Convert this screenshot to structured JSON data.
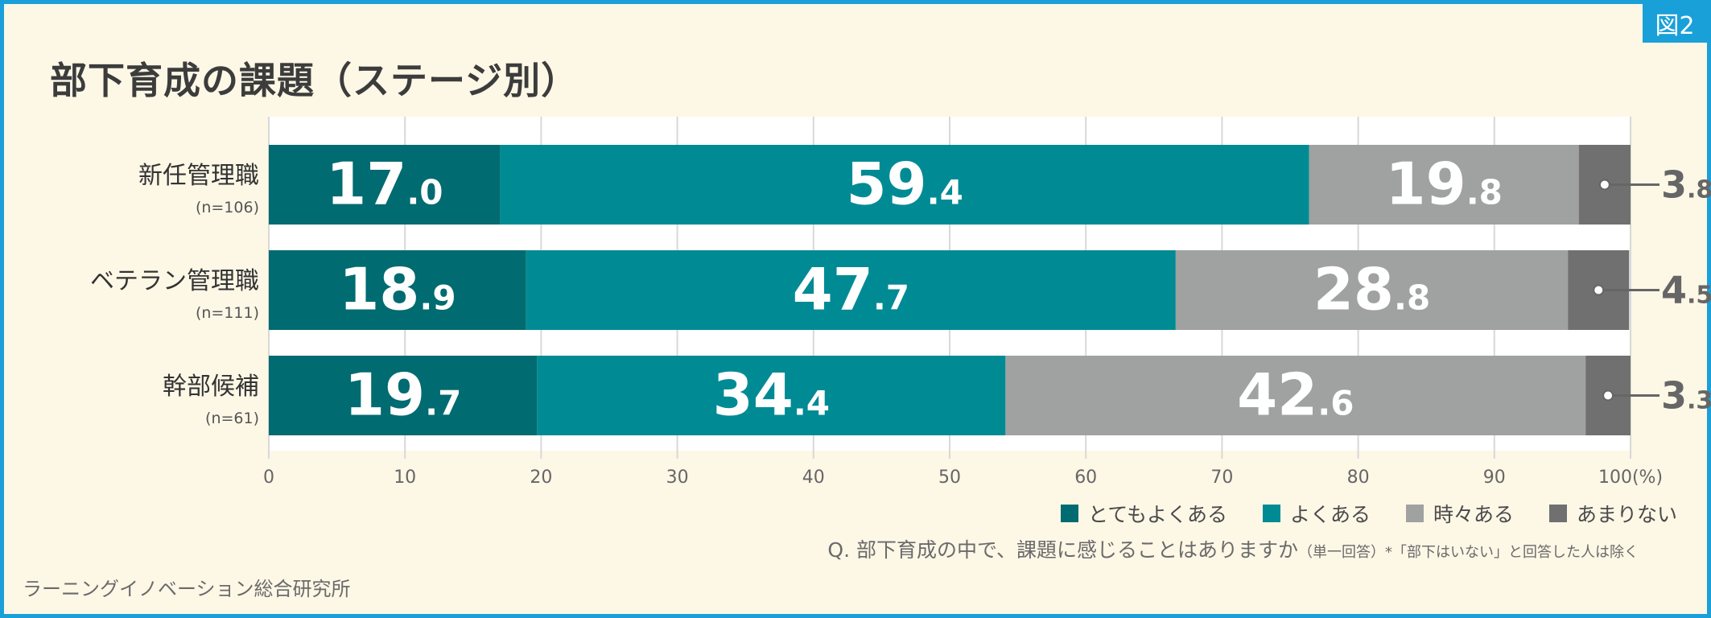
{
  "figure_badge": "図2",
  "title": "部下育成の課題（ステージ別）",
  "credit": "ラーニングイノベーション総合研究所",
  "question": {
    "main": "Q. 部下育成の中で、課題に感じることはありますか",
    "note": "（単一回答）*「部下はいない」と回答した人は除く"
  },
  "colors": {
    "background": "#fdf7e6",
    "frame": "#1aa0d8",
    "plot_bg": "#ffffff"
  },
  "chart_data": {
    "type": "bar",
    "orientation": "horizontal-stacked",
    "categories": [
      "新任管理職",
      "ベテラン管理職",
      "幹部候補"
    ],
    "category_notes": [
      "(n=106)",
      "(n=111)",
      "(n=61)"
    ],
    "series": [
      {
        "name": "とてもよくある",
        "color": "#006b70",
        "values": [
          17.0,
          18.9,
          19.7
        ]
      },
      {
        "name": "よくある",
        "color": "#008b94",
        "values": [
          59.4,
          47.7,
          34.4
        ]
      },
      {
        "name": "時々ある",
        "color": "#a0a1a1",
        "values": [
          19.8,
          28.8,
          42.6
        ]
      },
      {
        "name": "あまりない",
        "color": "#707070",
        "values": [
          3.8,
          4.5,
          3.3
        ]
      }
    ],
    "xlim": [
      0,
      100
    ],
    "xticks": [
      "0",
      "10",
      "20",
      "30",
      "40",
      "50",
      "60",
      "70",
      "80",
      "90",
      "100(%)"
    ],
    "grid": true,
    "legend_position": "bottom-right"
  }
}
